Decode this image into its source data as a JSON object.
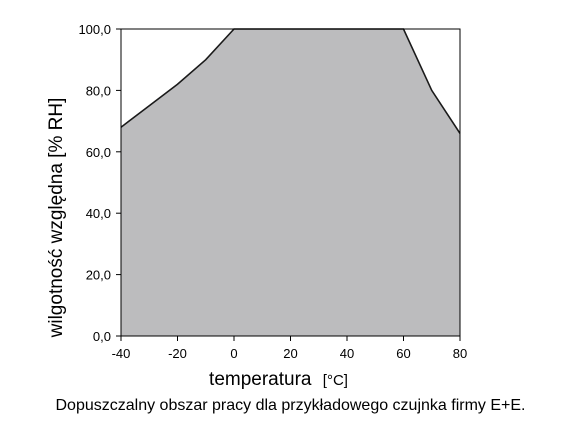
{
  "caption": "Dopuszczalny obszar pracy dla przykładowego czujnka firmy E+E.",
  "chart_data": {
    "type": "area",
    "title": "",
    "xlabel": "temperatura",
    "xlabel_unit": "[°C]",
    "ylabel": "wilgotność względna [% RH]",
    "xlim": [
      -40,
      80
    ],
    "ylim": [
      0,
      100
    ],
    "x_ticks": [
      -40,
      -20,
      0,
      20,
      40,
      60,
      80
    ],
    "y_ticks": [
      "0,0",
      "20,0",
      "40,0",
      "60,0",
      "80,0",
      "100,0"
    ],
    "y_tick_values": [
      0,
      20,
      40,
      60,
      80,
      100
    ],
    "grid": false,
    "legend": "none",
    "fill_color": "#bcbcbe",
    "line_color": "#1a1a1a",
    "series": [
      {
        "x": [
          -40,
          -30,
          -20,
          -10,
          0,
          60,
          70,
          80
        ],
        "y": [
          68,
          75,
          82,
          90,
          100,
          100,
          80,
          66
        ]
      }
    ]
  }
}
